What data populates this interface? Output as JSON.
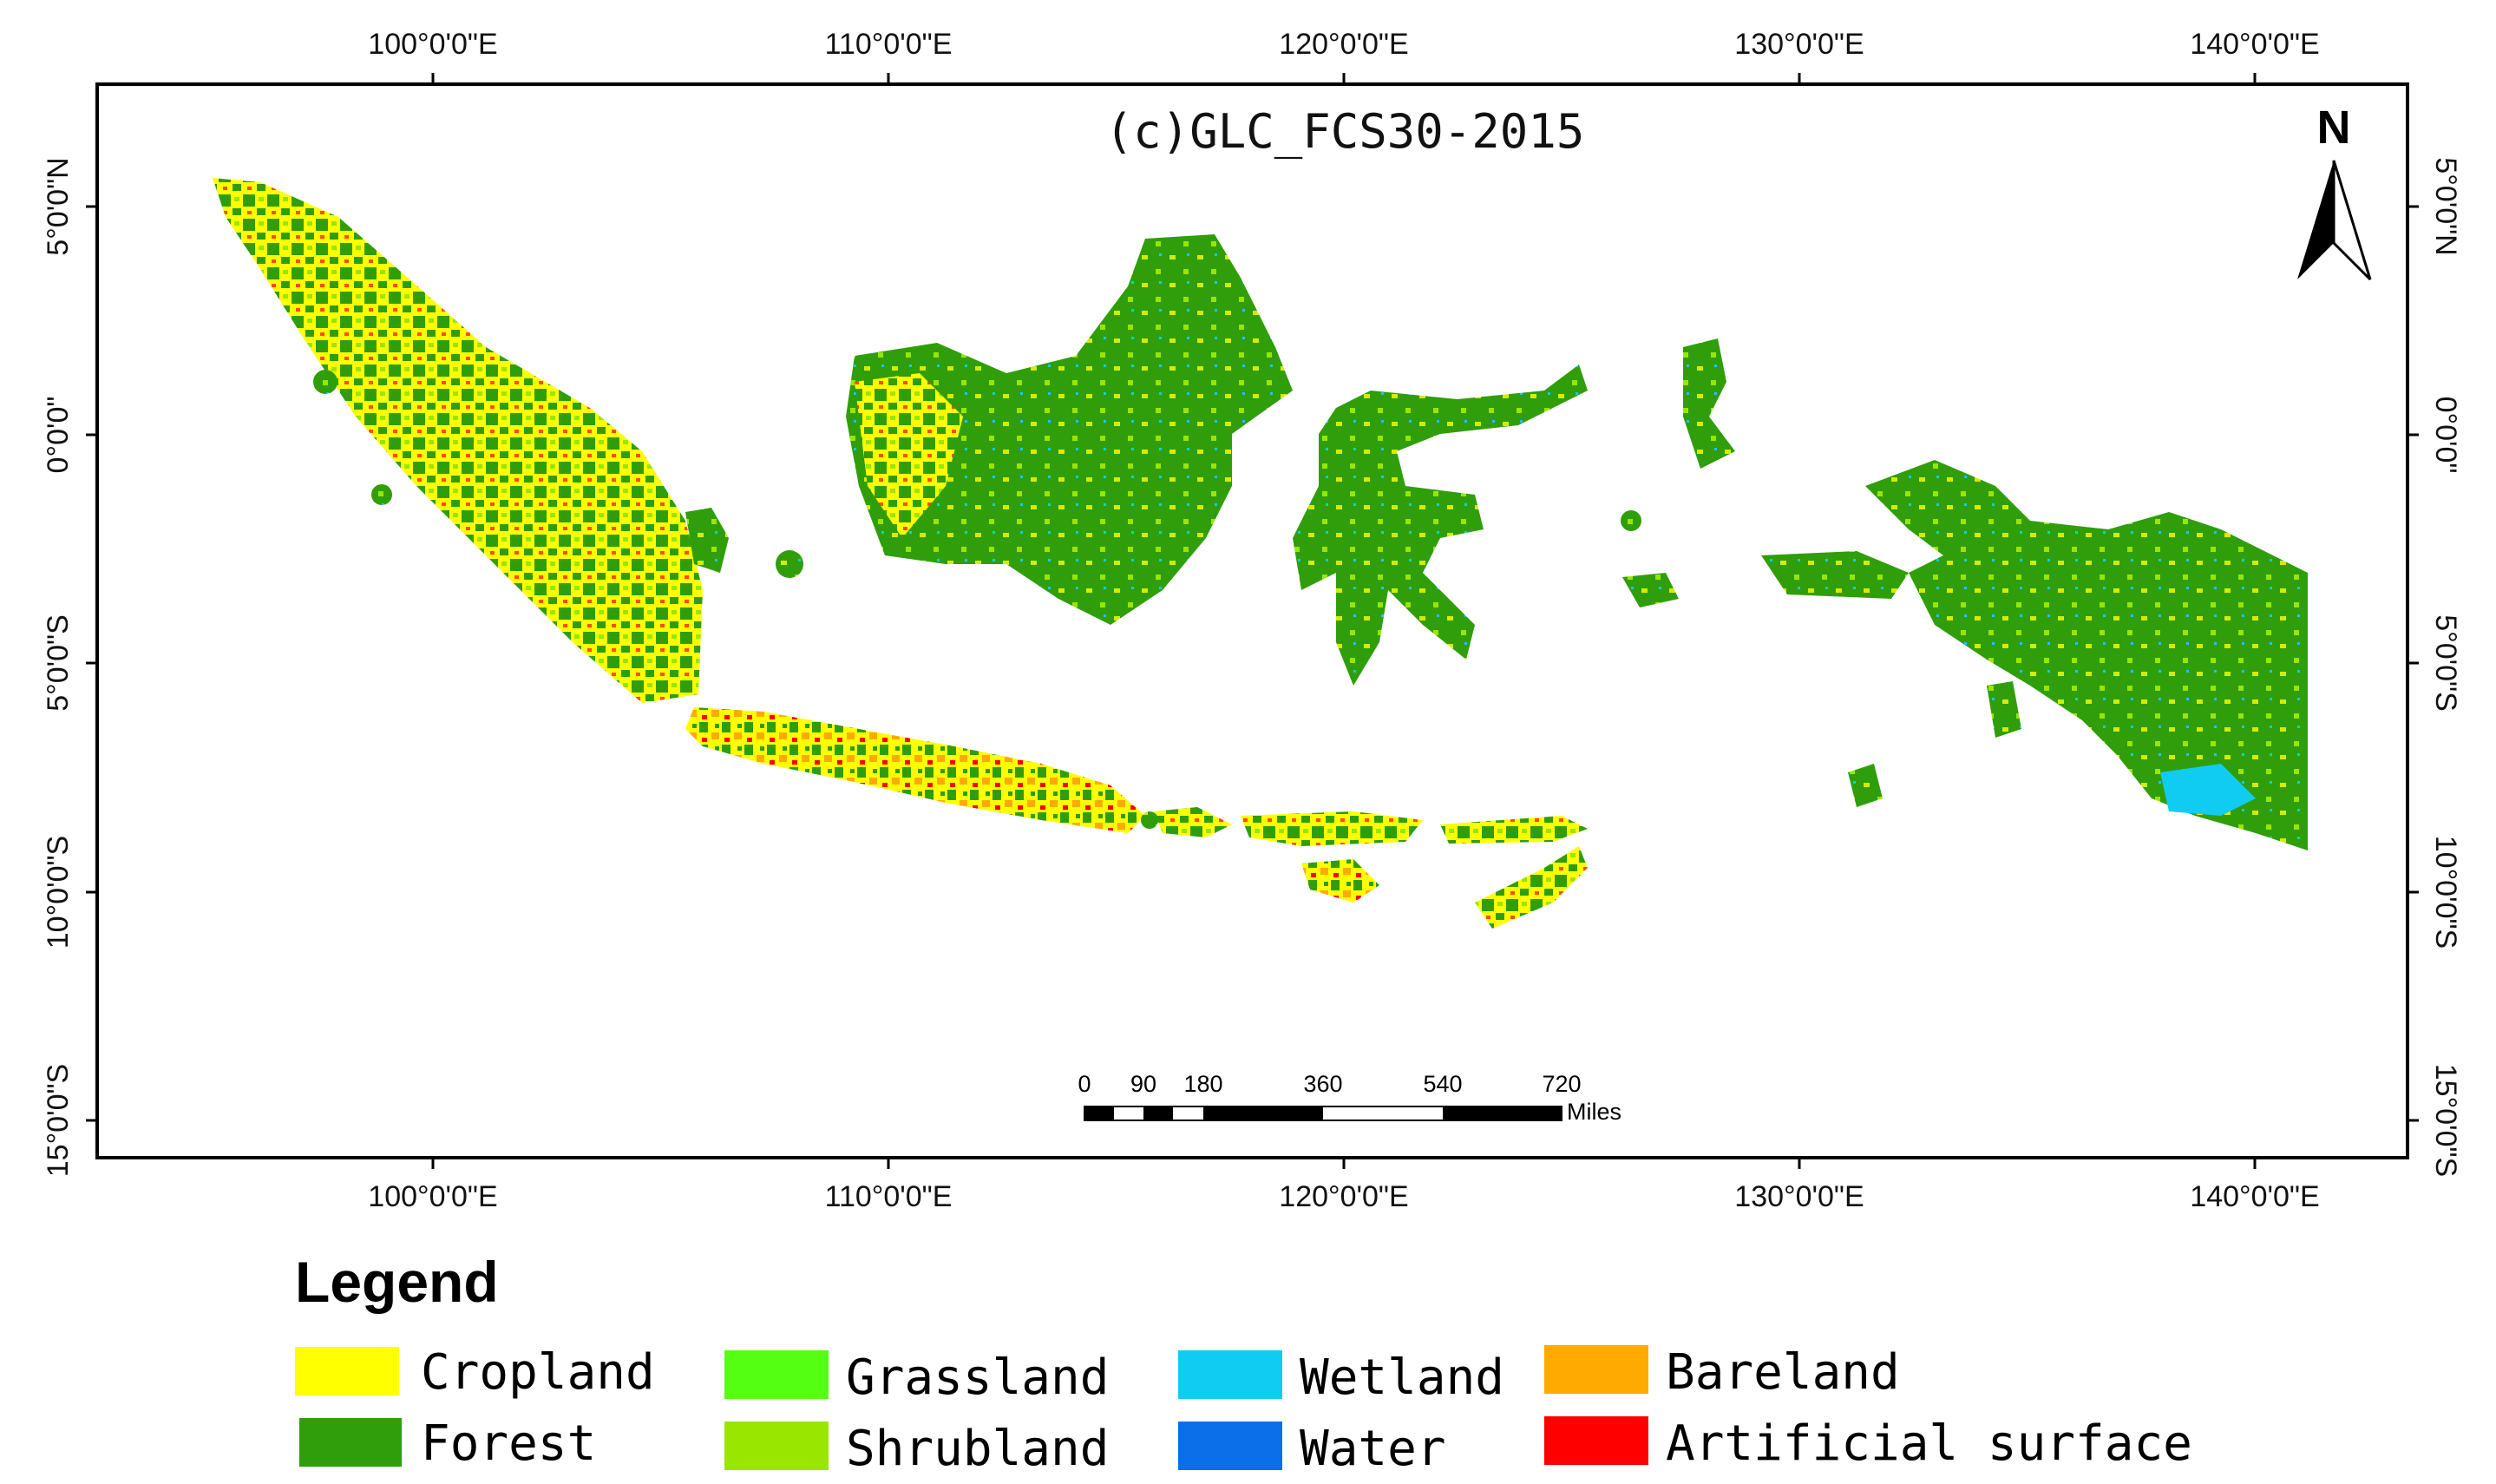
{
  "map": {
    "title": "(c)GLC_FCS30-2015",
    "north_label": "N",
    "north_arrow_icon": "north-arrow-icon",
    "lon_ticks": [
      "100°0'0\"E",
      "110°0'0\"E",
      "120°0'0\"E",
      "130°0'0\"E",
      "140°0'0\"E"
    ],
    "lat_ticks": [
      "5°0'0\"N",
      "0°0'0\"",
      "5°0'0\"S",
      "10°0'0\"S",
      "15°0'0\"S"
    ],
    "scale_bar": {
      "ticks": [
        "0",
        "90",
        "180",
        "360",
        "540",
        "720"
      ],
      "unit": "Miles"
    }
  },
  "legend": {
    "title": "Legend",
    "items": [
      {
        "label": "Cropland",
        "color": "#ffff00"
      },
      {
        "label": "Forest",
        "color": "#2f9e0a"
      },
      {
        "label": "Grassland",
        "color": "#55ff11"
      },
      {
        "label": "Shrubland",
        "color": "#99e600"
      },
      {
        "label": "Wetland",
        "color": "#11ccf2"
      },
      {
        "label": "Water",
        "color": "#0b6fea"
      },
      {
        "label": "Bareland",
        "color": "#ffaa00"
      },
      {
        "label": "Artificial surface",
        "color": "#ff0000"
      }
    ]
  }
}
